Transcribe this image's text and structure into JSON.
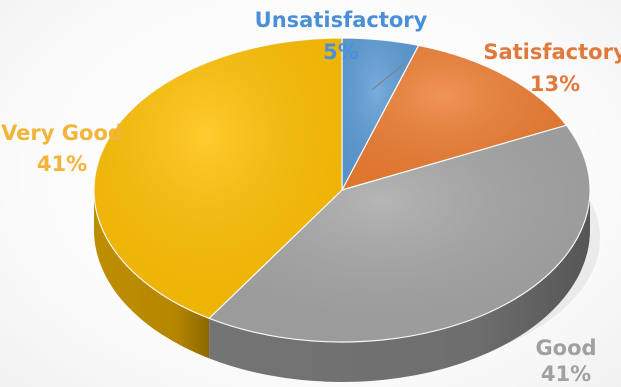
{
  "chart_data": {
    "type": "pie",
    "style": "3d",
    "title": "",
    "slices": [
      {
        "label": "Unsatisfactory",
        "value": 5,
        "percent_label": "5%",
        "color": "#5b9bd5",
        "side_color": "#3f77aa"
      },
      {
        "label": "Satisfactory",
        "value": 13,
        "percent_label": "13%",
        "color": "#ed7d31",
        "side_color": "#b65a1d"
      },
      {
        "label": "Good",
        "value": 41,
        "percent_label": "41%",
        "color": "#a5a5a5",
        "side_color": "#7a7a7a"
      },
      {
        "label": "Very Good",
        "value": 41,
        "percent_label": "41%",
        "color": "#ffc000",
        "side_color": "#c99500"
      }
    ],
    "legend": "none",
    "data_labels": "outside"
  }
}
